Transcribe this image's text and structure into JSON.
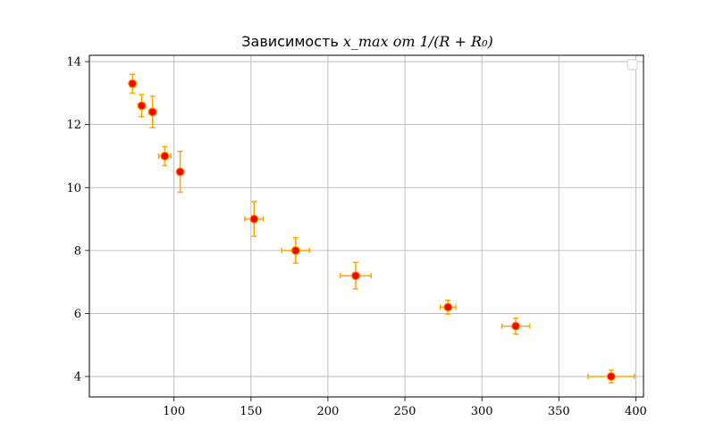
{
  "chart_data": {
    "type": "scatter",
    "title_prefix": "Зависимость ",
    "title_math": "x_max  от  1/(R + R₀)",
    "xlim": [
      45,
      405
    ],
    "ylim": [
      3.35,
      14.2
    ],
    "grid": true,
    "legend": {
      "placement": "top-right",
      "entries": []
    },
    "x_ticks": [
      100,
      150,
      200,
      250,
      300,
      350,
      400
    ],
    "y_ticks": [
      4,
      6,
      8,
      10,
      12,
      14
    ],
    "colors": {
      "marker_fill": "#ff0000",
      "marker_edge": "#ffa500",
      "errorbar": "#ffa500",
      "grid": "#b0b0b0"
    },
    "points": [
      {
        "x": 73,
        "y": 13.3,
        "xerr": 1.5,
        "yerr": 0.3
      },
      {
        "x": 79,
        "y": 12.6,
        "xerr": 2.5,
        "yerr": 0.35
      },
      {
        "x": 86,
        "y": 12.4,
        "xerr": 2.5,
        "yerr": 0.5
      },
      {
        "x": 94,
        "y": 11.0,
        "xerr": 4,
        "yerr": 0.3
      },
      {
        "x": 104,
        "y": 10.5,
        "xerr": 2,
        "yerr": 0.65
      },
      {
        "x": 152,
        "y": 9.0,
        "xerr": 6,
        "yerr": 0.55
      },
      {
        "x": 179,
        "y": 8.0,
        "xerr": 9,
        "yerr": 0.4
      },
      {
        "x": 218,
        "y": 7.2,
        "xerr": 10,
        "yerr": 0.42
      },
      {
        "x": 278,
        "y": 6.2,
        "xerr": 5,
        "yerr": 0.22
      },
      {
        "x": 322,
        "y": 5.6,
        "xerr": 9,
        "yerr": 0.25
      },
      {
        "x": 384,
        "y": 4.0,
        "xerr": 15,
        "yerr": 0.2
      }
    ]
  }
}
